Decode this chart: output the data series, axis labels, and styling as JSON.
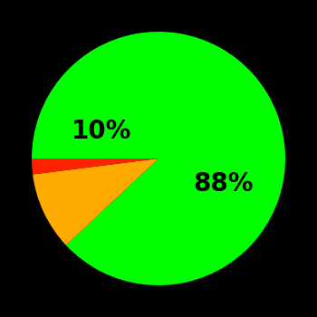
{
  "values": [
    88,
    10,
    2
  ],
  "colors": [
    "#00ff00",
    "#ffaa00",
    "#ff2200"
  ],
  "labels": [
    "88%",
    "10%",
    ""
  ],
  "background_color": "#000000",
  "startangle": 180,
  "figsize": [
    3.5,
    3.5
  ],
  "dpi": 100,
  "font_size": 20,
  "font_weight": "bold",
  "label_radii": [
    0.55,
    0.5,
    0
  ],
  "label_colors": [
    "black",
    "black",
    "black"
  ]
}
